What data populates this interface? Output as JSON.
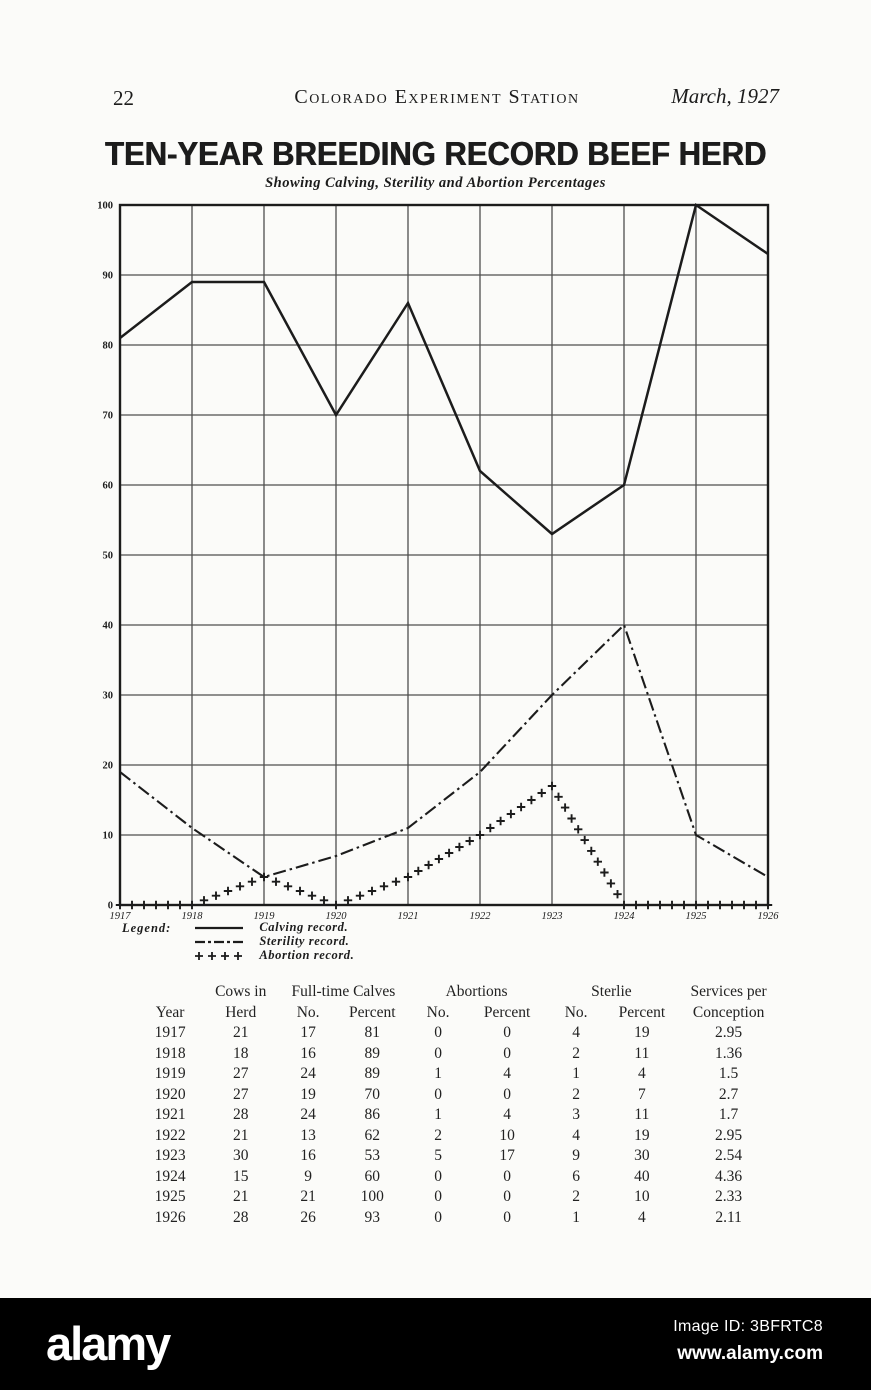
{
  "page": {
    "number": "22",
    "journal": "Colorado Experiment Station",
    "issue_date": "March, 1927"
  },
  "chart": {
    "title": "TEN-YEAR BREEDING RECORD BEEF HERD",
    "subtitle": "Showing Calving, Sterility and Abortion Percentages",
    "legend_label": "Legend:",
    "ink_color": "#1c1c1c"
  },
  "chart_data": {
    "type": "line",
    "x": [
      1917,
      1918,
      1919,
      1920,
      1921,
      1922,
      1923,
      1924,
      1925,
      1926
    ],
    "series": [
      {
        "name": "Calving record.",
        "style": "solid",
        "values": [
          81,
          89,
          89,
          70,
          86,
          62,
          53,
          60,
          100,
          93
        ]
      },
      {
        "name": "Sterility record.",
        "style": "dashdot",
        "values": [
          19,
          11,
          4,
          7,
          11,
          19,
          30,
          40,
          10,
          4
        ]
      },
      {
        "name": "Abortion record.",
        "style": "plus",
        "values": [
          0,
          0,
          4,
          0,
          4,
          10,
          17,
          0,
          0,
          0
        ]
      }
    ],
    "ylim": [
      0,
      100
    ],
    "ytick_step": 10,
    "grid": true,
    "legend_position": "bottom-left",
    "title": "TEN-YEAR BREEDING RECORD BEEF HERD",
    "xlabel": "",
    "ylabel": ""
  },
  "table": {
    "group_headers": [
      {
        "label": "",
        "span": 1
      },
      {
        "label": "Cows in",
        "span": 1
      },
      {
        "label": "Full-time Calves",
        "span": 2
      },
      {
        "label": "Abortions",
        "span": 2
      },
      {
        "label": "Sterlie",
        "span": 2
      },
      {
        "label": "Services per",
        "span": 1
      }
    ],
    "columns": [
      "Year",
      "Herd",
      "No.",
      "Percent",
      "No.",
      "Percent",
      "No.",
      "Percent",
      "Conception"
    ],
    "rows": [
      [
        "1917",
        "21",
        "17",
        "81",
        "0",
        "0",
        "4",
        "19",
        "2.95"
      ],
      [
        "1918",
        "18",
        "16",
        "89",
        "0",
        "0",
        "2",
        "11",
        "1.36"
      ],
      [
        "1919",
        "27",
        "24",
        "89",
        "1",
        "4",
        "1",
        "4",
        "1.5"
      ],
      [
        "1920",
        "27",
        "19",
        "70",
        "0",
        "0",
        "2",
        "7",
        "2.7"
      ],
      [
        "1921",
        "28",
        "24",
        "86",
        "1",
        "4",
        "3",
        "11",
        "1.7"
      ],
      [
        "1922",
        "21",
        "13",
        "62",
        "2",
        "10",
        "4",
        "19",
        "2.95"
      ],
      [
        "1923",
        "30",
        "16",
        "53",
        "5",
        "17",
        "9",
        "30",
        "2.54"
      ],
      [
        "1924",
        "15",
        "9",
        "60",
        "0",
        "0",
        "6",
        "40",
        "4.36"
      ],
      [
        "1925",
        "21",
        "21",
        "100",
        "0",
        "0",
        "2",
        "10",
        "2.33"
      ],
      [
        "1926",
        "28",
        "26",
        "93",
        "0",
        "0",
        "1",
        "4",
        "2.11"
      ]
    ]
  },
  "watermark": {
    "logo": "alamy",
    "image_id": "Image ID: 3BFRTC8",
    "url": "www.alamy.com"
  }
}
